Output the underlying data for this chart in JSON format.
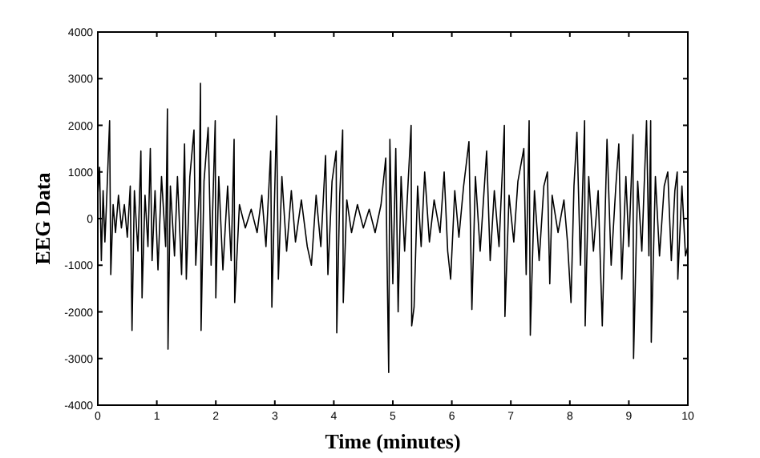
{
  "chart_data": {
    "type": "line",
    "xlabel": "Time (minutes)",
    "ylabel": "EEG Data",
    "xlim": [
      0,
      10
    ],
    "ylim": [
      -4000,
      4000
    ],
    "xticks": [
      0,
      1,
      2,
      3,
      4,
      5,
      6,
      7,
      8,
      9,
      10
    ],
    "yticks": [
      -4000,
      -3000,
      -2000,
      -1000,
      0,
      1000,
      2000,
      3000,
      4000
    ],
    "grid": false,
    "x": [
      0,
      0.03,
      0.06,
      0.09,
      0.12,
      0.15,
      0.2,
      0.22,
      0.26,
      0.3,
      0.35,
      0.4,
      0.45,
      0.5,
      0.55,
      0.58,
      0.62,
      0.68,
      0.73,
      0.75,
      0.8,
      0.85,
      0.89,
      0.92,
      0.97,
      1.02,
      1.08,
      1.15,
      1.18,
      1.19,
      1.23,
      1.3,
      1.35,
      1.42,
      1.47,
      1.5,
      1.56,
      1.63,
      1.66,
      1.72,
      1.74,
      1.75,
      1.8,
      1.87,
      1.92,
      1.99,
      2.0,
      2.05,
      2.12,
      2.2,
      2.26,
      2.31,
      2.32,
      2.4,
      2.5,
      2.6,
      2.7,
      2.78,
      2.85,
      2.93,
      2.95,
      3.03,
      3.06,
      3.12,
      3.2,
      3.28,
      3.35,
      3.45,
      3.55,
      3.62,
      3.7,
      3.78,
      3.86,
      3.9,
      3.97,
      4.04,
      4.05,
      4.1,
      4.15,
      4.16,
      4.22,
      4.3,
      4.4,
      4.5,
      4.6,
      4.7,
      4.8,
      4.88,
      4.9,
      4.93,
      4.95,
      5.0,
      5.05,
      5.09,
      5.14,
      5.2,
      5.26,
      5.31,
      5.32,
      5.36,
      5.42,
      5.48,
      5.54,
      5.62,
      5.7,
      5.8,
      5.87,
      5.93,
      5.98,
      6.05,
      6.12,
      6.2,
      6.29,
      6.34,
      6.4,
      6.48,
      6.59,
      6.65,
      6.72,
      6.8,
      6.89,
      6.9,
      6.97,
      7.05,
      7.12,
      7.22,
      7.26,
      7.31,
      7.33,
      7.4,
      7.48,
      7.56,
      7.62,
      7.66,
      7.7,
      7.8,
      7.9,
      7.96,
      8.02,
      8.07,
      8.12,
      8.18,
      8.25,
      8.26,
      8.32,
      8.4,
      8.48,
      8.55,
      8.63,
      8.7,
      8.78,
      8.83,
      8.88,
      8.95,
      9.0,
      9.07,
      9.08,
      9.15,
      9.22,
      9.3,
      9.34,
      9.37,
      9.38,
      9.45,
      9.52,
      9.6,
      9.66,
      9.72,
      9.78,
      9.82,
      9.83,
      9.9,
      9.96,
      10
    ],
    "values": [
      500,
      1100,
      -900,
      600,
      -500,
      400,
      2100,
      -1200,
      300,
      -300,
      500,
      -200,
      300,
      -400,
      700,
      -2400,
      600,
      -700,
      1450,
      -1700,
      500,
      -600,
      1500,
      -900,
      600,
      -1100,
      900,
      -600,
      2350,
      -2800,
      700,
      -800,
      900,
      -1200,
      1600,
      -1300,
      900,
      1900,
      -1000,
      600,
      2900,
      -2400,
      800,
      1950,
      -1000,
      2100,
      -1700,
      900,
      -1100,
      700,
      -900,
      1700,
      -1800,
      300,
      -200,
      200,
      -300,
      500,
      -600,
      1450,
      -1900,
      2200,
      -1300,
      900,
      -700,
      600,
      -500,
      400,
      -600,
      -1000,
      500,
      -600,
      1350,
      -1200,
      800,
      1450,
      -2450,
      500,
      1900,
      -1800,
      400,
      -300,
      300,
      -200,
      200,
      -300,
      300,
      1300,
      -700,
      -3300,
      1700,
      -1400,
      1500,
      -2000,
      900,
      -700,
      800,
      2000,
      -2300,
      -1900,
      700,
      -600,
      1000,
      -500,
      400,
      -300,
      1000,
      -700,
      -1300,
      600,
      -400,
      700,
      1650,
      -1950,
      900,
      -700,
      1450,
      -900,
      600,
      -600,
      2000,
      -2100,
      500,
      -500,
      800,
      1500,
      -1200,
      2100,
      -2500,
      600,
      -900,
      700,
      1000,
      -1400,
      500,
      -300,
      400,
      -500,
      -1800,
      700,
      1850,
      -1000,
      2100,
      -2300,
      900,
      -700,
      600,
      -2300,
      1700,
      -1000,
      700,
      1600,
      -1300,
      900,
      -600,
      1800,
      -3000,
      800,
      -700,
      2100,
      -800,
      2100,
      -2650,
      900,
      -800,
      700,
      1000,
      -900,
      600,
      1000,
      -1300,
      700,
      -800,
      -600
    ]
  }
}
